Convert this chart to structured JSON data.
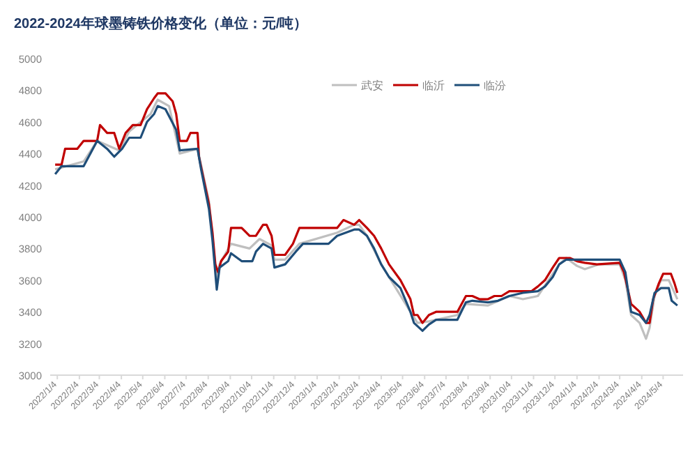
{
  "chart_data": {
    "type": "line",
    "title": "2022-2024年球墨铸铁价格变化（单位：元/吨）",
    "legend": "top right",
    "xlim": [
      "2021-12-25",
      "2024-06-01"
    ],
    "ylim": [
      3000,
      5000
    ],
    "yticks": [
      3000,
      3200,
      3400,
      3600,
      3800,
      4000,
      4200,
      4400,
      4600,
      4800,
      5000
    ],
    "xticks": [
      {
        "value": "2022-01-04",
        "label": "2022/1/4"
      },
      {
        "value": "2022-02-04",
        "label": "2022/2/4"
      },
      {
        "value": "2022-03-04",
        "label": "2022/3/4"
      },
      {
        "value": "2022-04-04",
        "label": "2022/4/4"
      },
      {
        "value": "2022-05-04",
        "label": "2022/5/4"
      },
      {
        "value": "2022-06-04",
        "label": "2022/6/4"
      },
      {
        "value": "2022-07-04",
        "label": "2022/7/4"
      },
      {
        "value": "2022-08-04",
        "label": "2022/8/4"
      },
      {
        "value": "2022-09-04",
        "label": "2022/9/4"
      },
      {
        "value": "2022-10-04",
        "label": "2022/10/4"
      },
      {
        "value": "2022-11-04",
        "label": "2022/11/4"
      },
      {
        "value": "2022-12-04",
        "label": "2022/12/4"
      },
      {
        "value": "2023-01-04",
        "label": "2023/1/4"
      },
      {
        "value": "2023-02-04",
        "label": "2023/2/4"
      },
      {
        "value": "2023-03-04",
        "label": "2023/3/4"
      },
      {
        "value": "2023-04-04",
        "label": "2023/4/4"
      },
      {
        "value": "2023-05-04",
        "label": "2023/5/4"
      },
      {
        "value": "2023-06-04",
        "label": "2023/6/4"
      },
      {
        "value": "2023-07-04",
        "label": "2023/7/4"
      },
      {
        "value": "2023-08-04",
        "label": "2023/8/4"
      },
      {
        "value": "2023-09-04",
        "label": "2023/9/4"
      },
      {
        "value": "2023-10-04",
        "label": "2023/10/4"
      },
      {
        "value": "2023-11-04",
        "label": "2023/11/4"
      },
      {
        "value": "2023-12-04",
        "label": "2023/12/4"
      },
      {
        "value": "2024-01-04",
        "label": "2024/1/4"
      },
      {
        "value": "2024-02-04",
        "label": "2024/2/4"
      },
      {
        "value": "2024-03-04",
        "label": "2024/3/4"
      },
      {
        "value": "2024-04-04",
        "label": "2024/4/4"
      },
      {
        "value": "2024-05-04",
        "label": "2024/5/4"
      }
    ],
    "series": [
      {
        "name": "武安",
        "color": "#bfbfbf",
        "x": [
          "2022-01-01",
          "2022-02-10",
          "2022-03-01",
          "2022-04-01",
          "2022-04-15",
          "2022-05-15",
          "2022-05-25",
          "2022-06-10",
          "2022-06-25",
          "2022-07-20",
          "2022-08-05",
          "2022-08-16",
          "2022-08-20",
          "2022-09-05",
          "2022-10-01",
          "2022-10-15",
          "2022-11-01",
          "2022-11-05",
          "2022-11-20",
          "2022-12-10",
          "2023-02-01",
          "2023-02-25",
          "2023-03-04",
          "2023-03-15",
          "2023-04-04",
          "2023-05-15",
          "2023-05-25",
          "2023-06-10",
          "2023-07-20",
          "2023-08-01",
          "2023-09-01",
          "2023-10-01",
          "2023-10-20",
          "2023-11-10",
          "2023-12-10",
          "2023-12-20",
          "2024-01-04",
          "2024-01-15",
          "2024-02-04",
          "2024-03-04",
          "2024-03-12",
          "2024-03-20",
          "2024-04-01",
          "2024-04-10",
          "2024-04-15",
          "2024-04-22",
          "2024-05-01",
          "2024-05-12",
          "2024-05-24"
        ],
        "values": [
          4300,
          4350,
          4480,
          4420,
          4540,
          4650,
          4740,
          4700,
          4400,
          4430,
          4100,
          3600,
          3700,
          3830,
          3800,
          3860,
          3820,
          3730,
          3730,
          3830,
          3900,
          3950,
          3950,
          3880,
          3700,
          3400,
          3330,
          3340,
          3380,
          3450,
          3440,
          3500,
          3480,
          3500,
          3700,
          3740,
          3690,
          3670,
          3700,
          3700,
          3600,
          3380,
          3330,
          3230,
          3300,
          3500,
          3600,
          3600,
          3480
        ]
      },
      {
        "name": "临沂",
        "color": "#c00000",
        "x": [
          "2022-01-01",
          "2022-01-10",
          "2022-01-15",
          "2022-02-01",
          "2022-02-10",
          "2022-03-01",
          "2022-03-05",
          "2022-03-15",
          "2022-03-25",
          "2022-04-01",
          "2022-04-10",
          "2022-04-20",
          "2022-05-01",
          "2022-05-10",
          "2022-05-20",
          "2022-05-25",
          "2022-06-05",
          "2022-06-15",
          "2022-06-20",
          "2022-06-25",
          "2022-07-05",
          "2022-07-10",
          "2022-07-20",
          "2022-07-22",
          "2022-07-28",
          "2022-08-05",
          "2022-08-10",
          "2022-08-14",
          "2022-08-18",
          "2022-08-22",
          "2022-09-01",
          "2022-09-05",
          "2022-09-20",
          "2022-10-01",
          "2022-10-10",
          "2022-10-20",
          "2022-10-25",
          "2022-11-01",
          "2022-11-05",
          "2022-11-20",
          "2022-12-01",
          "2022-12-10",
          "2023-01-01",
          "2023-02-01",
          "2023-02-10",
          "2023-02-25",
          "2023-03-04",
          "2023-03-15",
          "2023-03-25",
          "2023-04-04",
          "2023-04-15",
          "2023-05-01",
          "2023-05-15",
          "2023-05-20",
          "2023-05-25",
          "2023-06-01",
          "2023-06-10",
          "2023-06-20",
          "2023-07-01",
          "2023-07-20",
          "2023-08-01",
          "2023-08-10",
          "2023-08-20",
          "2023-09-01",
          "2023-09-10",
          "2023-09-20",
          "2023-10-01",
          "2023-10-20",
          "2023-11-01",
          "2023-11-10",
          "2023-11-20",
          "2023-12-01",
          "2023-12-10",
          "2023-12-25",
          "2024-01-04",
          "2024-01-15",
          "2024-02-01",
          "2024-03-04",
          "2024-03-10",
          "2024-03-20",
          "2024-04-01",
          "2024-04-10",
          "2024-04-15",
          "2024-04-20",
          "2024-04-28",
          "2024-05-04",
          "2024-05-15",
          "2024-05-20",
          "2024-05-24"
        ],
        "values": [
          4330,
          4330,
          4430,
          4430,
          4480,
          4480,
          4580,
          4530,
          4530,
          4430,
          4530,
          4580,
          4580,
          4680,
          4750,
          4780,
          4780,
          4730,
          4650,
          4480,
          4480,
          4530,
          4530,
          4380,
          4250,
          4080,
          3900,
          3700,
          3650,
          3720,
          3780,
          3930,
          3930,
          3880,
          3880,
          3950,
          3950,
          3880,
          3760,
          3760,
          3830,
          3930,
          3930,
          3930,
          3980,
          3950,
          3980,
          3930,
          3880,
          3800,
          3700,
          3600,
          3480,
          3380,
          3380,
          3330,
          3380,
          3400,
          3400,
          3400,
          3500,
          3500,
          3480,
          3480,
          3500,
          3500,
          3530,
          3530,
          3530,
          3560,
          3600,
          3680,
          3740,
          3740,
          3720,
          3710,
          3700,
          3710,
          3650,
          3450,
          3400,
          3330,
          3330,
          3480,
          3580,
          3640,
          3640,
          3580,
          3520
        ]
      },
      {
        "name": "临汾",
        "color": "#1f4e79",
        "x": [
          "2022-01-01",
          "2022-01-10",
          "2022-02-10",
          "2022-03-01",
          "2022-03-15",
          "2022-03-25",
          "2022-04-05",
          "2022-04-15",
          "2022-05-01",
          "2022-05-10",
          "2022-05-20",
          "2022-05-25",
          "2022-06-05",
          "2022-06-20",
          "2022-06-25",
          "2022-07-20",
          "2022-07-25",
          "2022-08-05",
          "2022-08-10",
          "2022-08-16",
          "2022-08-20",
          "2022-09-01",
          "2022-09-05",
          "2022-09-20",
          "2022-10-05",
          "2022-10-10",
          "2022-10-20",
          "2022-11-01",
          "2022-11-05",
          "2022-11-20",
          "2022-12-05",
          "2022-12-15",
          "2023-01-20",
          "2023-02-01",
          "2023-02-25",
          "2023-03-04",
          "2023-03-15",
          "2023-03-25",
          "2023-04-04",
          "2023-04-15",
          "2023-05-01",
          "2023-05-15",
          "2023-05-20",
          "2023-06-01",
          "2023-06-10",
          "2023-06-20",
          "2023-07-20",
          "2023-08-01",
          "2023-08-10",
          "2023-09-01",
          "2023-09-15",
          "2023-10-01",
          "2023-10-20",
          "2023-11-10",
          "2023-11-20",
          "2023-12-01",
          "2023-12-10",
          "2023-12-20",
          "2024-01-04",
          "2024-02-04",
          "2024-03-04",
          "2024-03-12",
          "2024-03-20",
          "2024-04-01",
          "2024-04-10",
          "2024-04-15",
          "2024-04-22",
          "2024-05-01",
          "2024-05-12",
          "2024-05-16",
          "2024-05-24"
        ],
        "values": [
          4270,
          4320,
          4320,
          4480,
          4430,
          4380,
          4430,
          4500,
          4500,
          4600,
          4650,
          4700,
          4680,
          4550,
          4420,
          4430,
          4300,
          4050,
          3850,
          3540,
          3680,
          3720,
          3770,
          3720,
          3720,
          3780,
          3830,
          3800,
          3680,
          3700,
          3780,
          3830,
          3830,
          3880,
          3920,
          3920,
          3880,
          3800,
          3700,
          3620,
          3550,
          3400,
          3330,
          3280,
          3320,
          3350,
          3350,
          3460,
          3470,
          3460,
          3470,
          3500,
          3520,
          3530,
          3560,
          3620,
          3700,
          3730,
          3730,
          3730,
          3730,
          3650,
          3400,
          3380,
          3330,
          3380,
          3520,
          3550,
          3550,
          3470,
          3440
        ]
      }
    ]
  }
}
